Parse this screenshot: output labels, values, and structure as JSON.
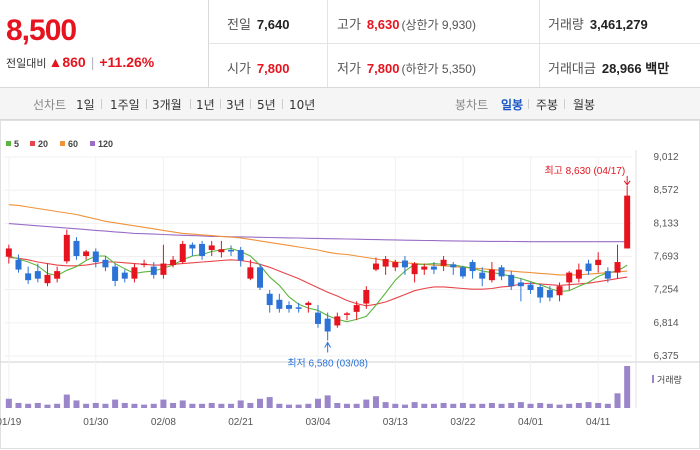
{
  "price": {
    "current": "8,500",
    "change_label": "전일대비",
    "change_arrow": "▲",
    "change_value": "860",
    "change_pct": "+11.26%"
  },
  "stats": {
    "prev_label": "전일",
    "prev_value": "7,640",
    "high_label": "고가",
    "high_value": "8,630",
    "upper_limit": "(상한가 9,930)",
    "volume_label": "거래량",
    "volume_value": "3,461,279",
    "open_label": "시가",
    "open_value": "7,800",
    "low_label": "저가",
    "low_value": "7,800",
    "lower_limit": "(하한가 5,350)",
    "amount_label": "거래대금",
    "amount_value": "28,966",
    "amount_unit": "백만"
  },
  "period": {
    "label": "선차트",
    "options": [
      "1일",
      "1주일",
      "3개월",
      "1년",
      "3년",
      "5년",
      "10년"
    ]
  },
  "candle": {
    "label": "봉차트",
    "options": [
      "일봉",
      "주봉",
      "월봉"
    ],
    "selected": "일봉"
  },
  "colors": {
    "up": "#e5141e",
    "down": "#2b73d6",
    "ma5": "#5cb53f",
    "ma20": "#e8454a",
    "ma60": "#f0923a",
    "ma120": "#9a6ec6",
    "volume": "#9a86c9"
  },
  "chart_data": {
    "type": "candlestick",
    "legend": [
      "5",
      "20",
      "60",
      "120"
    ],
    "y_ticks": [
      "9,012",
      "8,572",
      "8,133",
      "7,693",
      "7,254",
      "6,814",
      "6,375"
    ],
    "ylim": [
      6375,
      9012
    ],
    "x_labels": [
      "01/19",
      "01/30",
      "02/08",
      "02/21",
      "03/04",
      "03/13",
      "03/22",
      "04/01",
      "04/11"
    ],
    "x_label_index": [
      0,
      9,
      16,
      24,
      32,
      40,
      47,
      54,
      61
    ],
    "high_annotation": "최고 8,630 (04/17)",
    "low_annotation": "최저 6,580 (03/08)",
    "volume_label": "거래량",
    "candles": [
      [
        7690,
        7800,
        7850,
        7600
      ],
      [
        7650,
        7520,
        7720,
        7480
      ],
      [
        7470,
        7380,
        7560,
        7330
      ],
      [
        7500,
        7400,
        7600,
        7350
      ],
      [
        7340,
        7450,
        7600,
        7300
      ],
      [
        7400,
        7500,
        7560,
        7350
      ],
      [
        7630,
        7980,
        8050,
        7600
      ],
      [
        7900,
        7700,
        7950,
        7650
      ],
      [
        7700,
        7760,
        7780,
        7650
      ],
      [
        7760,
        7620,
        7800,
        7550
      ],
      [
        7650,
        7550,
        7700,
        7500
      ],
      [
        7560,
        7370,
        7600,
        7300
      ],
      [
        7480,
        7400,
        7520,
        7350
      ],
      [
        7400,
        7550,
        7600,
        7350
      ],
      [
        7580,
        7600,
        7650,
        7550
      ],
      [
        7560,
        7450,
        7620,
        7400
      ],
      [
        7450,
        7600,
        7850,
        7400
      ],
      [
        7580,
        7650,
        7700,
        7550
      ],
      [
        7620,
        7860,
        7900,
        7600
      ],
      [
        7850,
        7800,
        7880,
        7700
      ],
      [
        7860,
        7700,
        7900,
        7650
      ],
      [
        7780,
        7840,
        7900,
        7700
      ],
      [
        7750,
        7790,
        7900,
        7680
      ],
      [
        7780,
        7760,
        7840,
        7700
      ],
      [
        7780,
        7640,
        7820,
        7560
      ],
      [
        7400,
        7550,
        7650,
        7380
      ],
      [
        7550,
        7280,
        7600,
        7250
      ],
      [
        7200,
        7050,
        7250,
        6950
      ],
      [
        7120,
        7000,
        7200,
        6950
      ],
      [
        7050,
        7000,
        7100,
        6950
      ],
      [
        7020,
        7000,
        7080,
        6950
      ],
      [
        7050,
        7080,
        7100,
        6950
      ],
      [
        6950,
        6800,
        7050,
        6750
      ],
      [
        6870,
        6700,
        6950,
        6580
      ],
      [
        6780,
        6900,
        6950,
        6750
      ],
      [
        6920,
        6940,
        6960,
        6850
      ],
      [
        6960,
        7050,
        7100,
        6850
      ],
      [
        7070,
        7250,
        7300,
        7000
      ],
      [
        7520,
        7600,
        7680,
        7500
      ],
      [
        7560,
        7660,
        7700,
        7450
      ],
      [
        7550,
        7620,
        7650,
        7500
      ],
      [
        7640,
        7550,
        7700,
        7450
      ],
      [
        7460,
        7600,
        7620,
        7350
      ],
      [
        7520,
        7560,
        7600,
        7450
      ],
      [
        7560,
        7520,
        7620,
        7460
      ],
      [
        7570,
        7650,
        7700,
        7500
      ],
      [
        7590,
        7550,
        7620,
        7450
      ],
      [
        7550,
        7430,
        7570,
        7400
      ],
      [
        7620,
        7500,
        7650,
        7400
      ],
      [
        7480,
        7400,
        7550,
        7300
      ],
      [
        7380,
        7520,
        7620,
        7350
      ],
      [
        7550,
        7430,
        7580,
        7380
      ],
      [
        7450,
        7300,
        7500,
        7250
      ],
      [
        7350,
        7300,
        7400,
        7100
      ],
      [
        7320,
        7250,
        7350,
        7200
      ],
      [
        7290,
        7150,
        7330,
        7080
      ],
      [
        7250,
        7150,
        7300,
        7100
      ],
      [
        7180,
        7300,
        7350,
        7100
      ],
      [
        7350,
        7480,
        7500,
        7250
      ],
      [
        7400,
        7520,
        7600,
        7350
      ],
      [
        7600,
        7500,
        7650,
        7450
      ],
      [
        7580,
        7650,
        7750,
        7480
      ],
      [
        7500,
        7400,
        7550,
        7350
      ],
      [
        7480,
        7620,
        7850,
        7400
      ],
      [
        7800,
        8500,
        8630,
        7800
      ]
    ],
    "ma5": [
      7700,
      7660,
      7620,
      7570,
      7470,
      7440,
      7510,
      7560,
      7640,
      7700,
      7700,
      7600,
      7530,
      7470,
      7490,
      7500,
      7540,
      7580,
      7650,
      7700,
      7720,
      7760,
      7780,
      7800,
      7760,
      7700,
      7580,
      7420,
      7310,
      7160,
      7060,
      7010,
      6980,
      6910,
      6860,
      6830,
      6860,
      6900,
      7050,
      7210,
      7380,
      7500,
      7590,
      7590,
      7600,
      7590,
      7580,
      7560,
      7540,
      7500,
      7480,
      7460,
      7430,
      7400,
      7360,
      7320,
      7270,
      7230,
      7240,
      7300,
      7350,
      7430,
      7480,
      7500,
      7580
    ],
    "ma20": [
      7680,
      7670,
      7650,
      7620,
      7600,
      7580,
      7570,
      7570,
      7580,
      7600,
      7620,
      7620,
      7610,
      7600,
      7590,
      7580,
      7580,
      7590,
      7600,
      7610,
      7620,
      7630,
      7640,
      7650,
      7640,
      7620,
      7590,
      7550,
      7500,
      7450,
      7400,
      7340,
      7280,
      7220,
      7170,
      7110,
      7070,
      7040,
      7060,
      7090,
      7140,
      7190,
      7240,
      7270,
      7290,
      7290,
      7280,
      7270,
      7260,
      7260,
      7270,
      7290,
      7300,
      7330,
      7340,
      7330,
      7320,
      7310,
      7320,
      7330,
      7340,
      7360,
      7380,
      7400,
      7420
    ],
    "ma60": [
      8380,
      8370,
      8350,
      8330,
      8310,
      8290,
      8270,
      8250,
      8220,
      8190,
      8160,
      8140,
      8120,
      8100,
      8080,
      8060,
      8040,
      8020,
      8000,
      7990,
      7980,
      7970,
      7960,
      7950,
      7940,
      7920,
      7900,
      7880,
      7860,
      7840,
      7820,
      7800,
      7780,
      7750,
      7730,
      7720,
      7700,
      7680,
      7660,
      7640,
      7620,
      7610,
      7600,
      7590,
      7580,
      7570,
      7560,
      7550,
      7540,
      7530,
      7520,
      7510,
      7500,
      7490,
      7480,
      7470,
      7460,
      7450,
      7450,
      7450,
      7460,
      7470,
      7480,
      7490,
      7500
    ],
    "ma120": [
      8130,
      8120,
      8110,
      8100,
      8090,
      8080,
      8070,
      8060,
      8050,
      8040,
      8030,
      8020,
      8010,
      8000,
      7995,
      7990,
      7985,
      7980,
      7975,
      7970,
      7965,
      7960,
      7958,
      7955,
      7953,
      7950,
      7948,
      7945,
      7943,
      7940,
      7938,
      7935,
      7933,
      7930,
      7928,
      7925,
      7923,
      7920,
      7918,
      7915,
      7913,
      7910,
      7908,
      7906,
      7904,
      7902,
      7900,
      7898,
      7896,
      7895,
      7894,
      7893,
      7892,
      7891,
      7890,
      7890,
      7890,
      7890,
      7890,
      7890,
      7890,
      7890,
      7890,
      7890,
      7890
    ],
    "volumes": [
      0.22,
      0.12,
      0.1,
      0.12,
      0.08,
      0.1,
      0.32,
      0.18,
      0.1,
      0.12,
      0.1,
      0.2,
      0.12,
      0.1,
      0.08,
      0.1,
      0.2,
      0.12,
      0.18,
      0.1,
      0.1,
      0.12,
      0.1,
      0.1,
      0.18,
      0.12,
      0.22,
      0.26,
      0.1,
      0.08,
      0.08,
      0.1,
      0.22,
      0.3,
      0.12,
      0.1,
      0.1,
      0.2,
      0.28,
      0.14,
      0.1,
      0.08,
      0.14,
      0.1,
      0.1,
      0.12,
      0.1,
      0.12,
      0.1,
      0.1,
      0.12,
      0.1,
      0.12,
      0.14,
      0.1,
      0.12,
      0.1,
      0.08,
      0.1,
      0.12,
      0.14,
      0.12,
      0.1,
      0.35,
      1.0
    ]
  }
}
